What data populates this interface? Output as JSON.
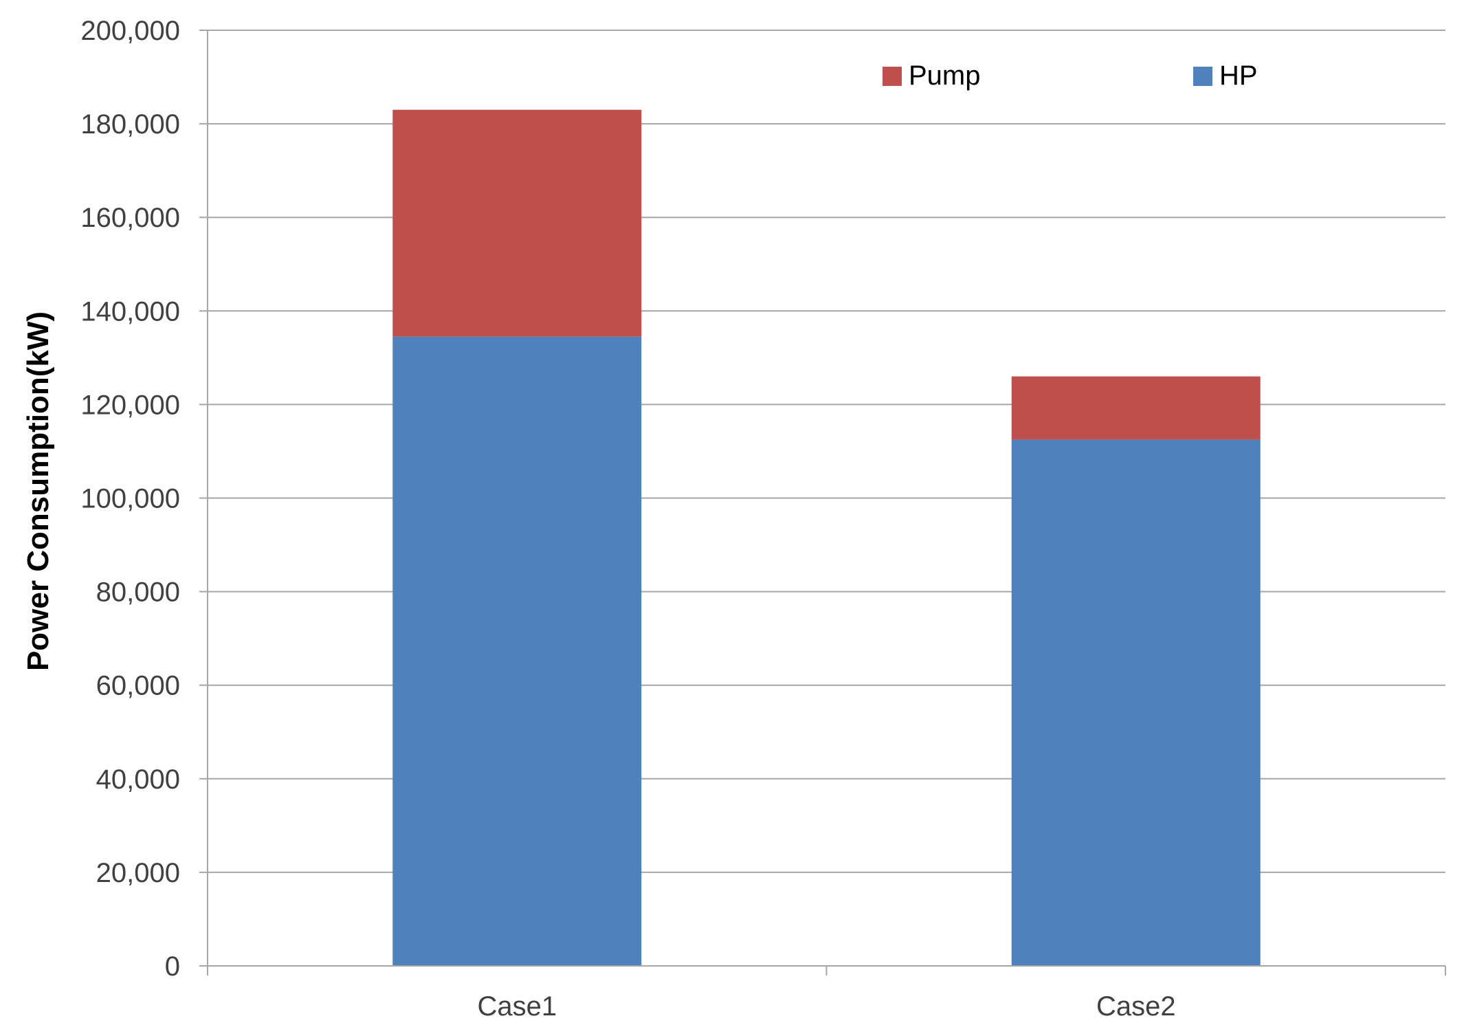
{
  "chart_data": {
    "type": "bar",
    "stacked": true,
    "categories": [
      "Case1",
      "Case2"
    ],
    "series": [
      {
        "name": "HP",
        "color": "#4F81BD",
        "values": [
          134500,
          112500
        ]
      },
      {
        "name": "Pump",
        "color": "#C0504D",
        "values": [
          48500,
          13500
        ]
      }
    ],
    "ylabel": "Power Consumption(kW)",
    "xlabel": "",
    "title": "",
    "ylim": [
      0,
      200000
    ],
    "yticks": [
      "0",
      "20,000",
      "40,000",
      "60,000",
      "80,000",
      "100,000",
      "120,000",
      "140,000",
      "160,000",
      "180,000",
      "200,000"
    ],
    "grid": true,
    "legend": {
      "placement": "top-right",
      "order": [
        "Pump",
        "HP"
      ]
    },
    "colors": {
      "gridline": "#A6A6A6",
      "axis": "#A6A6A6",
      "text": "#404040"
    }
  }
}
